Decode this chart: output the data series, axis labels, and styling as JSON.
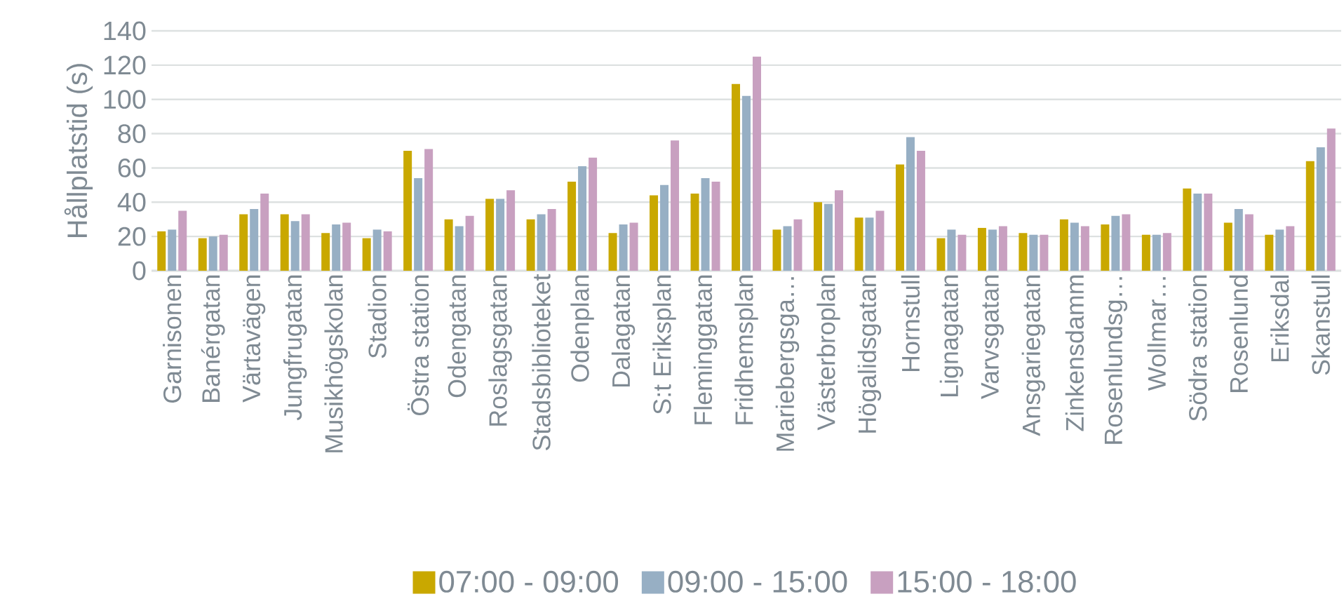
{
  "chart_data": {
    "type": "bar",
    "ylabel": "Hållplatstid (s)",
    "categories": [
      "Garnisonen",
      "Banérgatan",
      "Värtavägen",
      "Jungfrugatan",
      "Musikhögskolan",
      "Stadion",
      "Östra station",
      "Odengatan",
      "Roslagsgatan",
      "Stadsbiblioteket",
      "Odenplan",
      "Dalagatan",
      "S:t Eriksplan",
      "Fleminggatan",
      "Fridhemsplan",
      "Mariebergsga…",
      "Västerbroplan",
      "Högalidsgatan",
      "Hornstull",
      "Lignagatan",
      "Varvsgatan",
      "Ansgariegatan",
      "Zinkensdamm",
      "Rosenlundsg…",
      "Wollmar…",
      "Södra station",
      "Rosenlund",
      "Eriksdal",
      "Skanstull"
    ],
    "series": [
      {
        "name": "07:00 - 09:00",
        "color": "#c9a800",
        "values": [
          23,
          19,
          33,
          33,
          22,
          19,
          70,
          30,
          42,
          30,
          52,
          22,
          44,
          45,
          109,
          24,
          40,
          31,
          62,
          19,
          25,
          22,
          30,
          27,
          21,
          48,
          28,
          21,
          64
        ]
      },
      {
        "name": "09:00 - 15:00",
        "color": "#97afc4",
        "values": [
          24,
          20,
          36,
          29,
          27,
          24,
          54,
          26,
          42,
          33,
          61,
          27,
          50,
          54,
          102,
          26,
          39,
          31,
          78,
          24,
          24,
          21,
          28,
          32,
          21,
          45,
          36,
          24,
          72
        ]
      },
      {
        "name": "15:00 - 18:00",
        "color": "#c8a0c0",
        "values": [
          35,
          21,
          45,
          33,
          28,
          23,
          71,
          32,
          47,
          36,
          66,
          28,
          76,
          52,
          125,
          30,
          47,
          35,
          70,
          21,
          26,
          21,
          26,
          33,
          22,
          45,
          33,
          26,
          83
        ]
      }
    ],
    "ylim": [
      0,
      140
    ],
    "yticks": [
      0,
      20,
      40,
      60,
      80,
      100,
      120,
      140
    ],
    "grid": "y",
    "legend": "bottom"
  }
}
